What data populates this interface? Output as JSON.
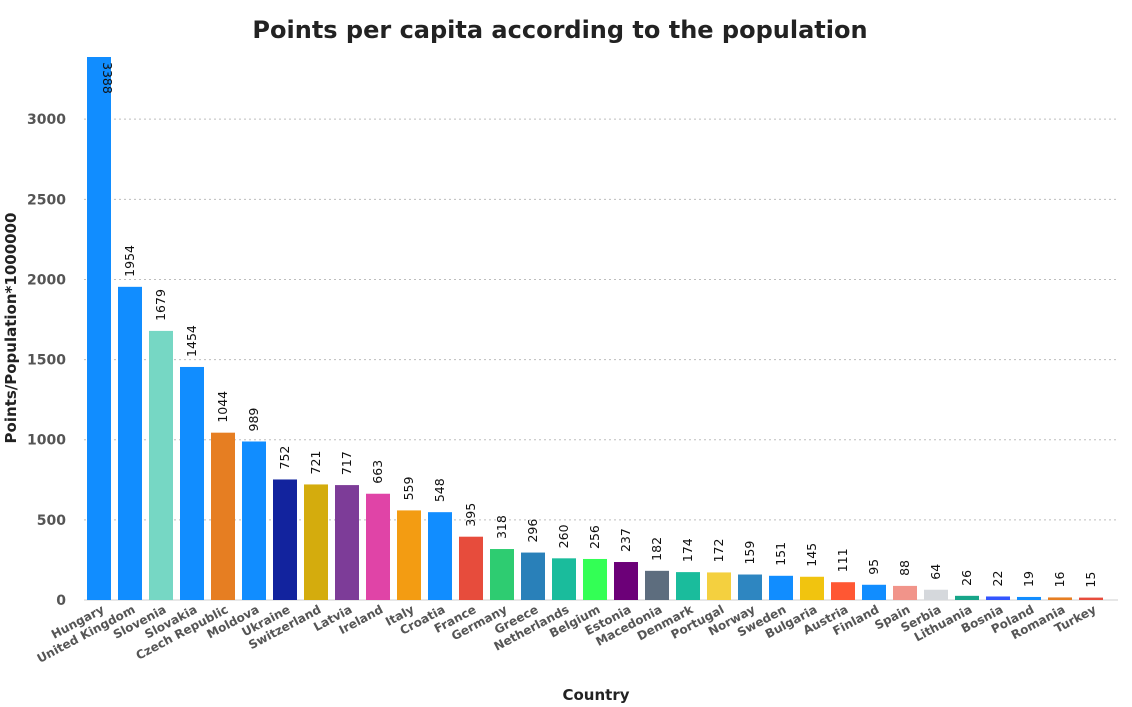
{
  "chart_data": {
    "type": "bar",
    "title": "Points per capita according to the population",
    "xlabel": "Country",
    "ylabel": "Points/Population*1000000",
    "ylim": [
      0,
      3388
    ],
    "yticks": [
      0,
      500,
      1000,
      1500,
      2000,
      2500,
      3000
    ],
    "grid": true,
    "categories": [
      "Hungary",
      "United Kingdom",
      "Slovenia",
      "Slovakia",
      "Czech Republic",
      "Moldova",
      "Ukraine",
      "Switzerland",
      "Latvia",
      "Ireland",
      "Italy",
      "Croatia",
      "France",
      "Germany",
      "Greece",
      "Netherlands",
      "Belgium",
      "Estonia",
      "Macedonia",
      "Denmark",
      "Portugal",
      "Norway",
      "Sweden",
      "Bulgaria",
      "Austria",
      "Finland",
      "Spain",
      "Serbia",
      "Lithuania",
      "Bosnia",
      "Poland",
      "Romania",
      "Turkey"
    ],
    "values": [
      3388,
      1954,
      1679,
      1454,
      1044,
      989,
      752,
      721,
      717,
      663,
      559,
      548,
      395,
      318,
      296,
      260,
      256,
      237,
      182,
      174,
      172,
      159,
      151,
      145,
      111,
      95,
      88,
      64,
      26,
      22,
      19,
      16,
      15
    ],
    "data_labels": [
      "3388",
      "1954",
      "1679",
      "1454",
      "1044",
      "989",
      "752",
      "721",
      "717",
      "663",
      "559",
      "548",
      "395",
      "318",
      "296",
      "260",
      "256",
      "237",
      "182",
      "174",
      "172",
      "159",
      "151",
      "145",
      "111",
      "95",
      "88",
      "64",
      "26",
      "22",
      "19",
      "16",
      "15"
    ],
    "colors": [
      "#118DFF",
      "#118DFF",
      "#76D7C4",
      "#118DFF",
      "#E67E22",
      "#118DFF",
      "#12239E",
      "#D4AC0D",
      "#7D3C98",
      "#E044A7",
      "#F39C12",
      "#118DFF",
      "#E74C3C",
      "#2ECC71",
      "#2980B9",
      "#1ABC9C",
      "#33FF55",
      "#6C0078",
      "#5D6D7E",
      "#1ABC9C",
      "#F4D03F",
      "#2E86C1",
      "#118DFF",
      "#F1C40F",
      "#FF5733",
      "#118DFF",
      "#F1948A",
      "#D5D8DC",
      "#17A589",
      "#3355FF",
      "#118DFF",
      "#E67E22",
      "#E74C3C"
    ]
  }
}
